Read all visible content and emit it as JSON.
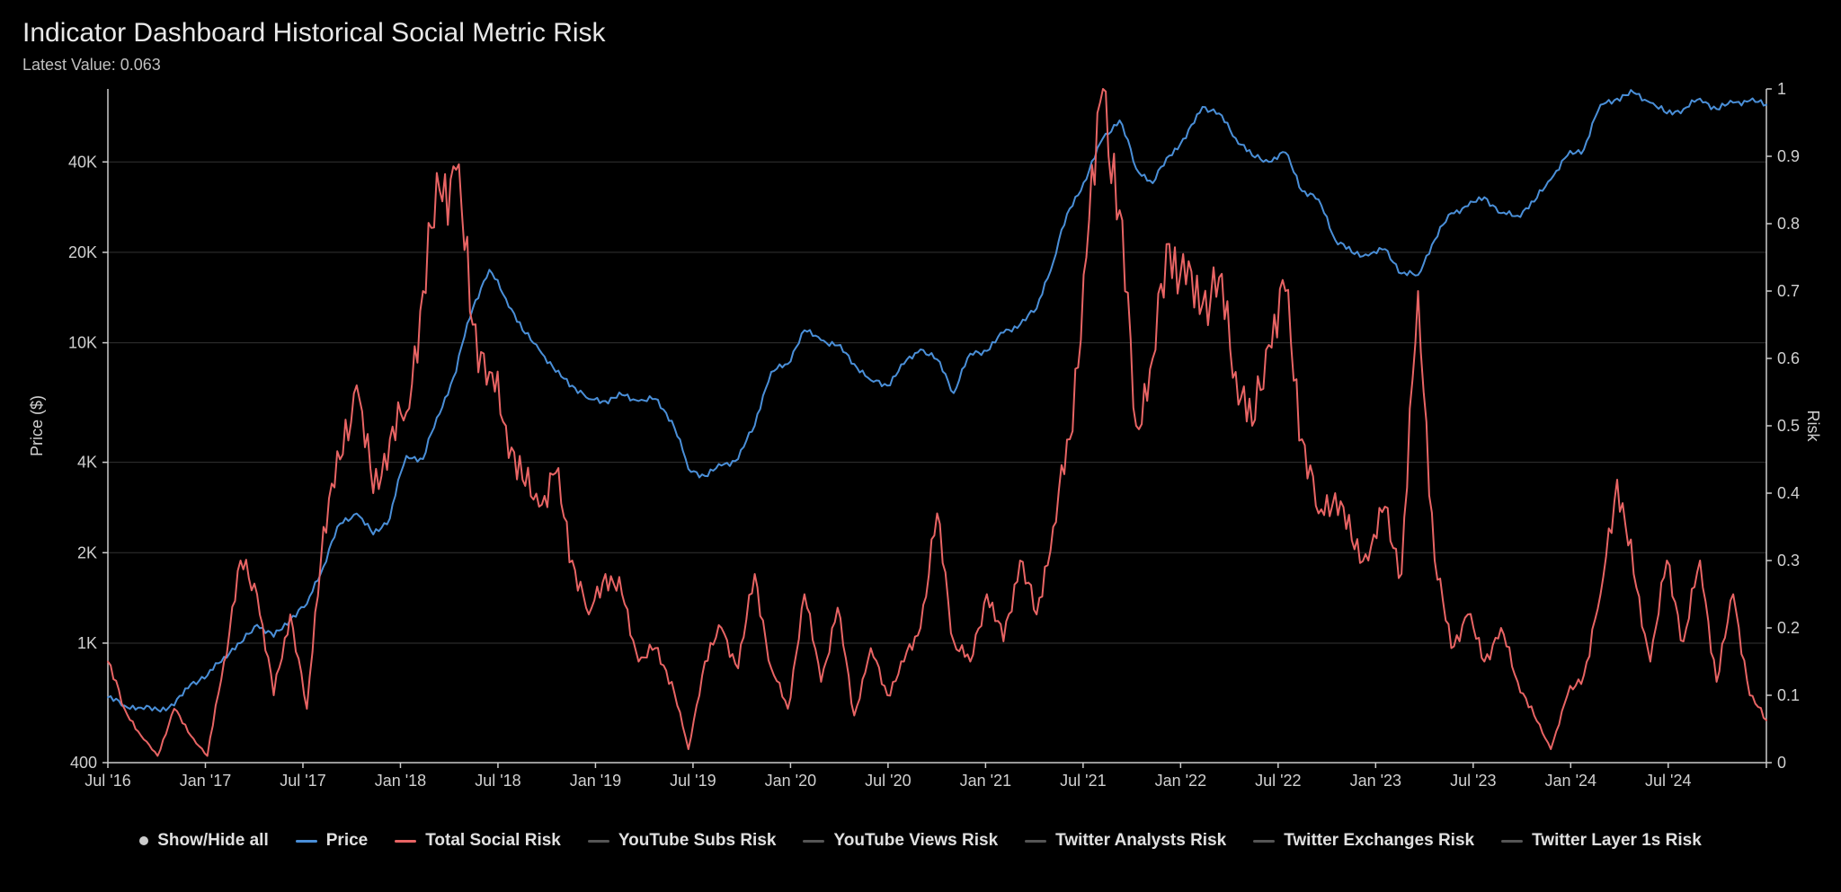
{
  "title": "Indicator Dashboard Historical Social Metric Risk",
  "subtitle_label": "Latest Value:",
  "subtitle_value": "0.063",
  "chart": {
    "type": "line-dual-axis",
    "background_color": "#000000",
    "grid_color": "#333333",
    "axis_color": "#cccccc",
    "text_color": "#d0d0d0",
    "title_fontsize": 30,
    "tick_fontsize": 18,
    "line_width": 2,
    "left_axis": {
      "label": "Price ($)",
      "scale": "log",
      "min": 400,
      "max": 70000,
      "ticks": [
        400,
        1000,
        2000,
        4000,
        10000,
        20000,
        40000
      ],
      "tick_labels": [
        "400",
        "1K",
        "2K",
        "4K",
        "10K",
        "20K",
        "40K"
      ]
    },
    "right_axis": {
      "label": "Risk",
      "scale": "linear",
      "min": 0,
      "max": 1,
      "ticks": [
        0,
        0.1,
        0.2,
        0.3,
        0.4,
        0.5,
        0.6,
        0.7,
        0.8,
        0.9,
        1
      ],
      "tick_labels": [
        "0",
        "0.1",
        "0.2",
        "0.3",
        "0.4",
        "0.5",
        "0.6",
        "0.7",
        "0.8",
        "0.9",
        "1"
      ]
    },
    "x_axis": {
      "min_index": 0,
      "max_index": 100,
      "ticks": [
        0,
        5.88,
        11.76,
        17.64,
        23.52,
        29.4,
        35.28,
        41.16,
        47.04,
        52.92,
        58.8,
        64.68,
        70.56,
        76.44,
        82.32,
        88.2,
        94.08,
        100
      ],
      "tick_labels": [
        "Jul '16",
        "Jan '17",
        "Jul '17",
        "Jan '18",
        "Jul '18",
        "Jan '19",
        "Jul '19",
        "Jan '20",
        "Jul '20",
        "Jan '21",
        "Jul '21",
        "Jan '22",
        "Jul '22",
        "Jan '23",
        "Jul '23",
        "Jan '24",
        "Jul '24",
        ""
      ]
    },
    "series": [
      {
        "name": "Price",
        "color": "#4a8fd8",
        "axis": "left",
        "visible": true,
        "data": [
          [
            0,
            660
          ],
          [
            1,
            620
          ],
          [
            2,
            610
          ],
          [
            3,
            600
          ],
          [
            4,
            620
          ],
          [
            5,
            730
          ],
          [
            6,
            780
          ],
          [
            7,
            900
          ],
          [
            8,
            1000
          ],
          [
            9,
            1150
          ],
          [
            10,
            1050
          ],
          [
            11,
            1200
          ],
          [
            12,
            1350
          ],
          [
            13,
            1800
          ],
          [
            14,
            2500
          ],
          [
            15,
            2700
          ],
          [
            16,
            2300
          ],
          [
            17,
            2600
          ],
          [
            18,
            4200
          ],
          [
            19,
            4100
          ],
          [
            20,
            5800
          ],
          [
            21,
            8000
          ],
          [
            22,
            13000
          ],
          [
            23,
            17500
          ],
          [
            24,
            14000
          ],
          [
            25,
            11000
          ],
          [
            26,
            9500
          ],
          [
            27,
            8000
          ],
          [
            28,
            7200
          ],
          [
            29,
            6500
          ],
          [
            30,
            6400
          ],
          [
            31,
            6700
          ],
          [
            32,
            6400
          ],
          [
            33,
            6500
          ],
          [
            34,
            5500
          ],
          [
            35,
            3800
          ],
          [
            36,
            3600
          ],
          [
            37,
            3900
          ],
          [
            38,
            4100
          ],
          [
            39,
            5300
          ],
          [
            40,
            8000
          ],
          [
            41,
            8500
          ],
          [
            42,
            11000
          ],
          [
            43,
            10200
          ],
          [
            44,
            9800
          ],
          [
            45,
            8500
          ],
          [
            46,
            7500
          ],
          [
            47,
            7200
          ],
          [
            48,
            8500
          ],
          [
            49,
            9500
          ],
          [
            50,
            8800
          ],
          [
            51,
            6800
          ],
          [
            52,
            9200
          ],
          [
            53,
            9400
          ],
          [
            54,
            10800
          ],
          [
            55,
            11500
          ],
          [
            56,
            13000
          ],
          [
            57,
            18500
          ],
          [
            58,
            28000
          ],
          [
            59,
            35000
          ],
          [
            60,
            48000
          ],
          [
            61,
            55000
          ],
          [
            62,
            38000
          ],
          [
            63,
            34000
          ],
          [
            64,
            42000
          ],
          [
            65,
            48000
          ],
          [
            66,
            61000
          ],
          [
            67,
            58000
          ],
          [
            68,
            48000
          ],
          [
            69,
            42000
          ],
          [
            70,
            40000
          ],
          [
            71,
            43000
          ],
          [
            72,
            32000
          ],
          [
            73,
            30000
          ],
          [
            74,
            22000
          ],
          [
            75,
            20000
          ],
          [
            76,
            19500
          ],
          [
            77,
            20500
          ],
          [
            78,
            17000
          ],
          [
            79,
            16800
          ],
          [
            80,
            22000
          ],
          [
            81,
            27000
          ],
          [
            82,
            28500
          ],
          [
            83,
            30500
          ],
          [
            84,
            27000
          ],
          [
            85,
            26500
          ],
          [
            86,
            29500
          ],
          [
            87,
            35000
          ],
          [
            88,
            42000
          ],
          [
            89,
            44000
          ],
          [
            90,
            62000
          ],
          [
            91,
            65000
          ],
          [
            92,
            68000
          ],
          [
            93,
            63000
          ],
          [
            94,
            58000
          ],
          [
            95,
            60000
          ],
          [
            96,
            65000
          ],
          [
            97,
            60000
          ],
          [
            98,
            63000
          ],
          [
            99,
            64000
          ],
          [
            100,
            62000
          ]
        ]
      },
      {
        "name": "Total Social Risk",
        "color": "#e86464",
        "axis": "right",
        "visible": true,
        "data": [
          [
            0,
            0.15
          ],
          [
            1,
            0.08
          ],
          [
            2,
            0.04
          ],
          [
            3,
            0.01
          ],
          [
            4,
            0.08
          ],
          [
            5,
            0.04
          ],
          [
            6,
            0.01
          ],
          [
            7,
            0.15
          ],
          [
            8,
            0.3
          ],
          [
            9,
            0.25
          ],
          [
            10,
            0.1
          ],
          [
            11,
            0.22
          ],
          [
            12,
            0.08
          ],
          [
            13,
            0.35
          ],
          [
            14,
            0.45
          ],
          [
            15,
            0.56
          ],
          [
            16,
            0.4
          ],
          [
            17,
            0.48
          ],
          [
            18,
            0.52
          ],
          [
            19,
            0.7
          ],
          [
            20,
            0.85
          ],
          [
            21,
            0.88
          ],
          [
            22,
            0.65
          ],
          [
            23,
            0.58
          ],
          [
            24,
            0.5
          ],
          [
            25,
            0.42
          ],
          [
            26,
            0.38
          ],
          [
            27,
            0.43
          ],
          [
            28,
            0.3
          ],
          [
            29,
            0.22
          ],
          [
            30,
            0.28
          ],
          [
            31,
            0.25
          ],
          [
            32,
            0.15
          ],
          [
            33,
            0.17
          ],
          [
            34,
            0.12
          ],
          [
            35,
            0.02
          ],
          [
            36,
            0.15
          ],
          [
            37,
            0.2
          ],
          [
            38,
            0.14
          ],
          [
            39,
            0.28
          ],
          [
            40,
            0.14
          ],
          [
            41,
            0.08
          ],
          [
            42,
            0.25
          ],
          [
            43,
            0.12
          ],
          [
            44,
            0.23
          ],
          [
            45,
            0.07
          ],
          [
            46,
            0.17
          ],
          [
            47,
            0.1
          ],
          [
            48,
            0.15
          ],
          [
            49,
            0.2
          ],
          [
            50,
            0.37
          ],
          [
            51,
            0.18
          ],
          [
            52,
            0.15
          ],
          [
            53,
            0.25
          ],
          [
            54,
            0.18
          ],
          [
            55,
            0.3
          ],
          [
            56,
            0.22
          ],
          [
            57,
            0.35
          ],
          [
            58,
            0.48
          ],
          [
            59,
            0.75
          ],
          [
            60,
            1.0
          ],
          [
            61,
            0.82
          ],
          [
            62,
            0.5
          ],
          [
            63,
            0.6
          ],
          [
            64,
            0.77
          ],
          [
            65,
            0.71
          ],
          [
            66,
            0.68
          ],
          [
            67,
            0.72
          ],
          [
            68,
            0.58
          ],
          [
            69,
            0.5
          ],
          [
            70,
            0.62
          ],
          [
            71,
            0.7
          ],
          [
            72,
            0.48
          ],
          [
            73,
            0.37
          ],
          [
            74,
            0.4
          ],
          [
            75,
            0.33
          ],
          [
            76,
            0.3
          ],
          [
            77,
            0.38
          ],
          [
            78,
            0.28
          ],
          [
            79,
            0.7
          ],
          [
            80,
            0.3
          ],
          [
            81,
            0.17
          ],
          [
            82,
            0.22
          ],
          [
            83,
            0.15
          ],
          [
            84,
            0.2
          ],
          [
            85,
            0.12
          ],
          [
            86,
            0.07
          ],
          [
            87,
            0.02
          ],
          [
            88,
            0.1
          ],
          [
            89,
            0.13
          ],
          [
            90,
            0.25
          ],
          [
            91,
            0.42
          ],
          [
            92,
            0.28
          ],
          [
            93,
            0.15
          ],
          [
            94,
            0.3
          ],
          [
            95,
            0.18
          ],
          [
            96,
            0.3
          ],
          [
            97,
            0.12
          ],
          [
            98,
            0.25
          ],
          [
            99,
            0.1
          ],
          [
            100,
            0.063
          ]
        ]
      }
    ]
  },
  "legend": {
    "show_hide_label": "Show/Hide all",
    "items": [
      {
        "label": "Price",
        "color": "#4a8fd8",
        "active": true
      },
      {
        "label": "Total Social Risk",
        "color": "#e86464",
        "active": true
      },
      {
        "label": "YouTube Subs Risk",
        "color": "#555555",
        "active": false
      },
      {
        "label": "YouTube Views Risk",
        "color": "#555555",
        "active": false
      },
      {
        "label": "Twitter Analysts Risk",
        "color": "#555555",
        "active": false
      },
      {
        "label": "Twitter Exchanges Risk",
        "color": "#555555",
        "active": false
      },
      {
        "label": "Twitter Layer 1s Risk",
        "color": "#555555",
        "active": false
      }
    ]
  }
}
